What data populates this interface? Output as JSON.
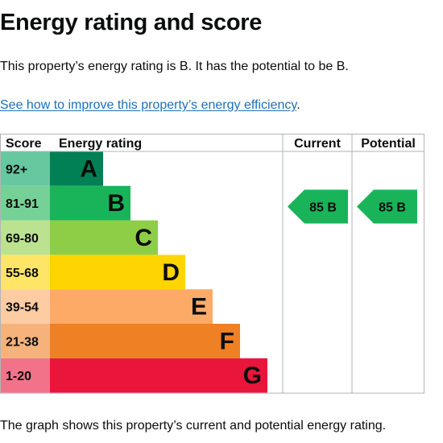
{
  "page": {
    "heading": "Energy rating and score",
    "summary": "This property’s energy rating is B. It has the potential to be B.",
    "improve_link": "See how to improve this property’s energy efficiency",
    "improve_suffix": ".",
    "caption": "The graph shows this property’s current and potential energy rating."
  },
  "chart_data": {
    "type": "bar",
    "headers": {
      "score": "Score",
      "rating": "Energy rating",
      "current": "Current",
      "potential": "Potential"
    },
    "bands": [
      {
        "band": "A",
        "score": "92+",
        "color": "#008054",
        "score_bg": "#67c8a0"
      },
      {
        "band": "B",
        "score": "81-91",
        "color": "#19b459",
        "score_bg": "#75d196"
      },
      {
        "band": "C",
        "score": "69-80",
        "color": "#8dce46",
        "score_bg": "#bbe290"
      },
      {
        "band": "D",
        "score": "55-68",
        "color": "#ffd500",
        "score_bg": "#ffe566"
      },
      {
        "band": "E",
        "score": "39-54",
        "color": "#fcaa65",
        "score_bg": "#fdcca3"
      },
      {
        "band": "F",
        "score": "21-38",
        "color": "#ef8023",
        "score_bg": "#f5b37b"
      },
      {
        "band": "G",
        "score": "1-20",
        "color": "#e9153b",
        "score_bg": "#f27389"
      }
    ],
    "current": {
      "value": 85,
      "band": "B",
      "label": "85 B",
      "color": "#19b459"
    },
    "potential": {
      "value": 85,
      "band": "B",
      "label": "85 B",
      "color": "#19b459"
    }
  }
}
